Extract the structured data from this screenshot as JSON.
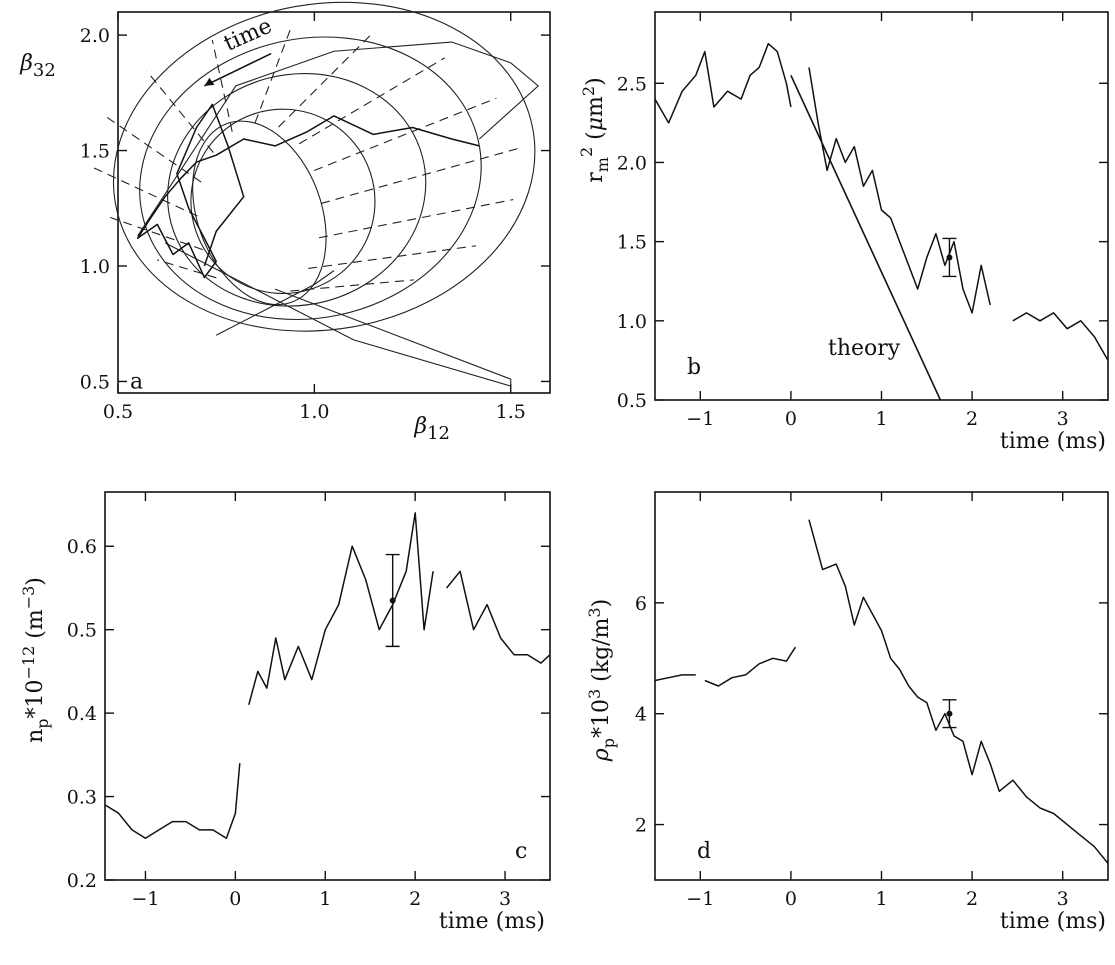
{
  "chart_data": [
    {
      "id": "a",
      "type": "line",
      "panel_label": "a",
      "xlabel": "β12",
      "ylabel": "β32",
      "xlim": [
        0.5,
        1.6
      ],
      "ylim": [
        0.45,
        2.1
      ],
      "xticks": [
        0.5,
        1.0,
        1.5
      ],
      "xtick_labels": [
        "0.5",
        "1.0",
        "1.5"
      ],
      "yticks": [
        0.5,
        1.0,
        1.5,
        2.0
      ],
      "ytick_labels": [
        "0.5",
        "1.0",
        "1.5",
        "2.0"
      ],
      "annotation": "time",
      "series": [
        {
          "x": [
            1.42,
            1.35,
            1.25,
            1.15,
            1.05,
            0.98,
            0.9,
            0.82,
            0.75,
            0.7,
            0.66,
            0.62,
            0.58,
            0.55,
            0.6,
            0.64,
            0.68,
            0.72,
            0.75,
            0.72,
            0.68,
            0.65,
            0.7,
            0.74,
            0.78,
            0.82,
            0.75,
            0.72
          ],
          "y": [
            1.52,
            1.55,
            1.6,
            1.57,
            1.65,
            1.58,
            1.52,
            1.55,
            1.48,
            1.45,
            1.38,
            1.3,
            1.2,
            1.12,
            1.18,
            1.05,
            1.1,
            0.95,
            1.02,
            1.12,
            1.25,
            1.4,
            1.6,
            1.7,
            1.52,
            1.3,
            1.15,
            1.0
          ]
        }
      ]
    },
    {
      "id": "b",
      "type": "line",
      "panel_label": "b",
      "xlabel": "time (ms)",
      "ylabel": "r_m^2 (μm^2)",
      "xlim": [
        -1.5,
        3.5
      ],
      "ylim": [
        0.5,
        2.95
      ],
      "xticks": [
        -1,
        0,
        1,
        2,
        3
      ],
      "xtick_labels": [
        "−1",
        "0",
        "1",
        "2",
        "3"
      ],
      "yticks": [
        0.5,
        1.0,
        1.5,
        2.0,
        2.5
      ],
      "ytick_labels": [
        "0.5",
        "1.0",
        "1.5",
        "2.0",
        "2.5"
      ],
      "annotation": "theory",
      "series": [
        {
          "x": [
            -1.5,
            -1.35,
            -1.2,
            -1.05,
            -0.95,
            -0.85,
            -0.7,
            -0.55,
            -0.45,
            -0.35,
            -0.25,
            -0.15,
            -0.05,
            0.0
          ],
          "y": [
            2.4,
            2.25,
            2.45,
            2.55,
            2.7,
            2.35,
            2.45,
            2.4,
            2.55,
            2.6,
            2.75,
            2.7,
            2.5,
            2.35
          ]
        },
        {
          "x": [
            0.2,
            0.3,
            0.4,
            0.5,
            0.6,
            0.7,
            0.8,
            0.9,
            1.0,
            1.1,
            1.2,
            1.3,
            1.4,
            1.5,
            1.6,
            1.7,
            1.8,
            1.9,
            2.0,
            2.1,
            2.2
          ],
          "y": [
            2.6,
            2.25,
            1.95,
            2.15,
            2.0,
            2.1,
            1.85,
            1.95,
            1.7,
            1.65,
            1.5,
            1.35,
            1.2,
            1.4,
            1.55,
            1.35,
            1.5,
            1.2,
            1.05,
            1.35,
            1.1
          ]
        },
        {
          "x": [
            2.45,
            2.6,
            2.75,
            2.9,
            3.05,
            3.2,
            3.35,
            3.5
          ],
          "y": [
            1.0,
            1.05,
            1.0,
            1.05,
            0.95,
            1.0,
            0.9,
            0.75
          ]
        }
      ],
      "theory_line": {
        "x": [
          0.0,
          1.65
        ],
        "y": [
          2.55,
          0.5
        ]
      },
      "error_bar": {
        "x": 1.75,
        "y": 1.4,
        "low": 1.28,
        "high": 1.52
      }
    },
    {
      "id": "c",
      "type": "line",
      "panel_label": "c",
      "xlabel": "time (ms)",
      "ylabel": "n_p*10^-12 (m^-3)",
      "xlim": [
        -1.45,
        3.5
      ],
      "ylim": [
        0.2,
        0.665
      ],
      "xticks": [
        -1,
        0,
        1,
        2,
        3
      ],
      "xtick_labels": [
        "−1",
        "0",
        "1",
        "2",
        "3"
      ],
      "yticks": [
        0.2,
        0.3,
        0.4,
        0.5,
        0.6
      ],
      "ytick_labels": [
        "0.2",
        "0.3",
        "0.4",
        "0.5",
        "0.6"
      ],
      "series": [
        {
          "x": [
            -1.45,
            -1.3,
            -1.15,
            -1.0,
            -0.85,
            -0.7,
            -0.55,
            -0.4,
            -0.25,
            -0.1,
            0.0,
            0.05
          ],
          "y": [
            0.29,
            0.28,
            0.26,
            0.25,
            0.26,
            0.27,
            0.27,
            0.26,
            0.26,
            0.25,
            0.28,
            0.34
          ]
        },
        {
          "x": [
            0.15,
            0.25,
            0.35,
            0.45,
            0.55,
            0.7,
            0.85,
            1.0,
            1.15,
            1.3,
            1.45,
            1.6,
            1.75,
            1.9,
            2.0,
            2.1,
            2.2
          ],
          "y": [
            0.41,
            0.45,
            0.43,
            0.49,
            0.44,
            0.48,
            0.44,
            0.5,
            0.53,
            0.6,
            0.56,
            0.5,
            0.53,
            0.57,
            0.64,
            0.5,
            0.57
          ]
        },
        {
          "x": [
            2.35,
            2.5,
            2.65,
            2.8,
            2.95,
            3.1,
            3.25,
            3.4,
            3.5
          ],
          "y": [
            0.55,
            0.57,
            0.5,
            0.53,
            0.49,
            0.47,
            0.47,
            0.46,
            0.47
          ]
        }
      ],
      "error_bar": {
        "x": 1.75,
        "y": 0.535,
        "low": 0.48,
        "high": 0.59
      }
    },
    {
      "id": "d",
      "type": "line",
      "panel_label": "d",
      "xlabel": "time (ms)",
      "ylabel": "ρ_p*10^3 (kg/m^3)",
      "xlim": [
        -1.5,
        3.5
      ],
      "ylim": [
        1.0,
        8.0
      ],
      "xticks": [
        -1,
        0,
        1,
        2,
        3
      ],
      "xtick_labels": [
        "−1",
        "0",
        "1",
        "2",
        "3"
      ],
      "yticks": [
        2,
        4,
        6
      ],
      "ytick_labels": [
        "2",
        "4",
        "6"
      ],
      "series": [
        {
          "x": [
            -1.5,
            -1.35,
            -1.2,
            -1.05
          ],
          "y": [
            4.6,
            4.65,
            4.7,
            4.7
          ]
        },
        {
          "x": [
            -0.95,
            -0.8,
            -0.65,
            -0.5,
            -0.35,
            -0.2,
            -0.05,
            0.05
          ],
          "y": [
            4.6,
            4.5,
            4.65,
            4.7,
            4.9,
            5.0,
            4.95,
            5.2
          ]
        },
        {
          "x": [
            0.2,
            0.35,
            0.5,
            0.6,
            0.7,
            0.8,
            0.9,
            1.0,
            1.1,
            1.2,
            1.3,
            1.4,
            1.5,
            1.6,
            1.7,
            1.8,
            1.9,
            2.0,
            2.1,
            2.2,
            2.3,
            2.45,
            2.6,
            2.75,
            2.9,
            3.05,
            3.2,
            3.35,
            3.5
          ],
          "y": [
            7.5,
            6.6,
            6.7,
            6.3,
            5.6,
            6.1,
            5.8,
            5.5,
            5.0,
            4.8,
            4.5,
            4.3,
            4.2,
            3.7,
            4.0,
            3.6,
            3.5,
            2.9,
            3.5,
            3.1,
            2.6,
            2.8,
            2.5,
            2.3,
            2.2,
            2.0,
            1.8,
            1.6,
            1.3
          ]
        }
      ],
      "error_bar": {
        "x": 1.75,
        "y": 4.0,
        "low": 3.75,
        "high": 4.25
      }
    }
  ]
}
